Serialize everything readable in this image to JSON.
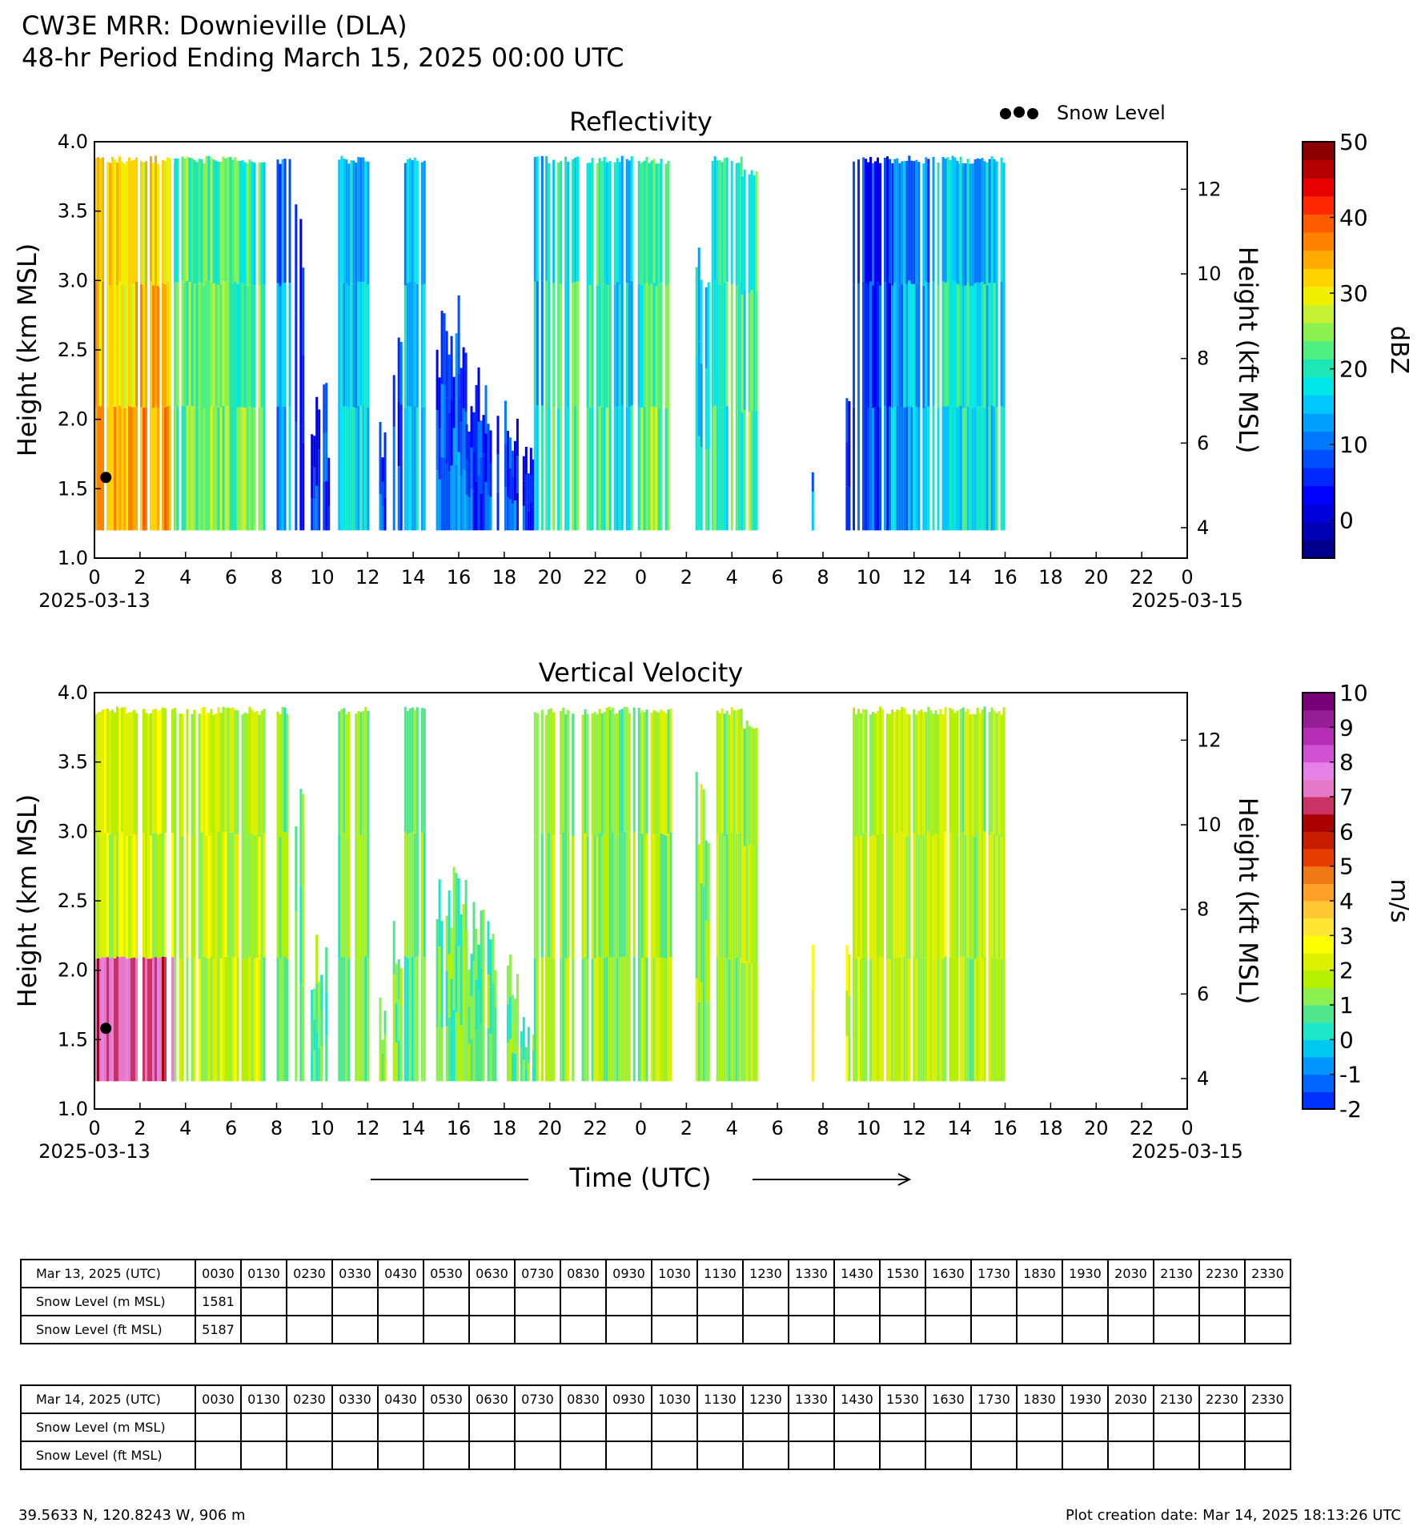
{
  "header": {
    "line1": "CW3E MRR: Downieville (DLA)",
    "line2": "48-hr Period Ending March 15, 2025 00:00 UTC"
  },
  "legend": {
    "label": "Snow Level"
  },
  "chart_data": [
    {
      "type": "heatmap",
      "title": "Reflectivity",
      "ylabel": "Height (km MSL)",
      "y2label": "Height (kft MSL)",
      "ylim": [
        1.0,
        4.0
      ],
      "yticks": [
        "1.0",
        "1.5",
        "2.0",
        "2.5",
        "3.0",
        "3.5",
        "4.0"
      ],
      "y2ticks": [
        "4",
        "6",
        "8",
        "10",
        "12"
      ],
      "xticks": [
        "0",
        "2",
        "4",
        "6",
        "8",
        "10",
        "12",
        "14",
        "16",
        "18",
        "20",
        "22",
        "0",
        "2",
        "4",
        "6",
        "8",
        "10",
        "12",
        "14",
        "16",
        "18",
        "20",
        "22",
        "0"
      ],
      "date_start": "2025-03-13",
      "date_end": "2025-03-15",
      "colorbar_label": "dBZ",
      "colorbar_ticks": [
        "50",
        "40",
        "30",
        "20",
        "10",
        "0"
      ],
      "colorbar_range": [
        -5,
        50
      ],
      "colors": [
        "#00008b",
        "#0000b4",
        "#0000dc",
        "#0000ff",
        "#0028ff",
        "#0050ff",
        "#0078ff",
        "#00a0ff",
        "#00c8ff",
        "#00e6e6",
        "#1ee6b4",
        "#50ef82",
        "#8cf050",
        "#c8f032",
        "#f0f000",
        "#ffd200",
        "#ffaa00",
        "#ff8200",
        "#ff5a00",
        "#ff2800",
        "#e60000",
        "#b40000",
        "#8b0000"
      ],
      "snow_level": [
        {
          "time_h": 0.5,
          "height_km": 1.581
        }
      ],
      "data_extent_km": [
        1.2,
        3.9
      ],
      "echo_periods_h": [
        [
          0,
          7.5
        ],
        [
          8,
          8.6
        ],
        [
          9,
          11.5
        ],
        [
          11.8,
          12.3
        ],
        [
          12.5,
          13.2
        ],
        [
          13.5,
          14.6
        ],
        [
          15.5,
          16.5
        ],
        [
          17,
          18
        ],
        [
          18.8,
          20.2
        ],
        [
          19.5,
          22.5
        ],
        [
          22.6,
          25.3
        ],
        [
          26.5,
          29.2
        ],
        [
          30.5,
          30.6
        ],
        [
          31.5,
          31.6
        ],
        [
          32.8,
          34
        ],
        [
          34,
          37.6
        ],
        [
          37.6,
          40
        ]
      ],
      "notes": "Highest reflectivity (25-35 dBZ) 0-4 h on 2025-03-13; weak echoes (0-10 dBZ) 33-36 h."
    },
    {
      "type": "heatmap",
      "title": "Vertical Velocity",
      "ylabel": "Height (km MSL)",
      "y2label": "Height (kft MSL)",
      "xlabel": "Time (UTC)",
      "ylim": [
        1.0,
        4.0
      ],
      "yticks": [
        "1.0",
        "1.5",
        "2.0",
        "2.5",
        "3.0",
        "3.5",
        "4.0"
      ],
      "y2ticks": [
        "4",
        "6",
        "8",
        "10",
        "12"
      ],
      "xticks": [
        "0",
        "2",
        "4",
        "6",
        "8",
        "10",
        "12",
        "14",
        "16",
        "18",
        "20",
        "22",
        "0",
        "2",
        "4",
        "6",
        "8",
        "10",
        "12",
        "14",
        "16",
        "18",
        "20",
        "22",
        "0"
      ],
      "date_start": "2025-03-13",
      "date_end": "2025-03-15",
      "colorbar_label": "m/s",
      "colorbar_ticks": [
        "10",
        "9",
        "8",
        "7",
        "6",
        "5",
        "4",
        "3",
        "2",
        "1",
        "0",
        "-1",
        "-2"
      ],
      "colorbar_range": [
        -2,
        10
      ],
      "colors": [
        "#0032ff",
        "#0064ff",
        "#0096ff",
        "#00c8f0",
        "#1ee6c8",
        "#50e68c",
        "#8cf050",
        "#b4f000",
        "#dcf000",
        "#ffff00",
        "#ffe632",
        "#ffc832",
        "#ffa028",
        "#f07814",
        "#e63c00",
        "#c81e00",
        "#aa0000",
        "#c83264",
        "#e678c8",
        "#e682e6",
        "#d250d2",
        "#b42db4",
        "#961e96",
        "#780078"
      ],
      "snow_level": [
        {
          "time_h": 0.5,
          "height_km": 1.581
        }
      ],
      "data_extent_km": [
        1.2,
        3.9
      ],
      "notes": "Mostly 0.5-2.5 m/s; up to 6-9 m/s near 0-1 h at low levels."
    }
  ],
  "tables": [
    {
      "header_label": "Mar 13, 2025 (UTC)",
      "times": [
        "0030",
        "0130",
        "0230",
        "0330",
        "0430",
        "0530",
        "0630",
        "0730",
        "0830",
        "0930",
        "1030",
        "1130",
        "1230",
        "1330",
        "1430",
        "1530",
        "1630",
        "1730",
        "1830",
        "1930",
        "2030",
        "2130",
        "2230",
        "2330"
      ],
      "rows": [
        {
          "label": "Snow Level (m MSL)",
          "values": [
            "1581",
            "",
            "",
            "",
            "",
            "",
            "",
            "",
            "",
            "",
            "",
            "",
            "",
            "",
            "",
            "",
            "",
            "",
            "",
            "",
            "",
            "",
            "",
            ""
          ]
        },
        {
          "label": "Snow Level (ft MSL)",
          "values": [
            "5187",
            "",
            "",
            "",
            "",
            "",
            "",
            "",
            "",
            "",
            "",
            "",
            "",
            "",
            "",
            "",
            "",
            "",
            "",
            "",
            "",
            "",
            "",
            ""
          ]
        }
      ]
    },
    {
      "header_label": "Mar 14, 2025 (UTC)",
      "times": [
        "0030",
        "0130",
        "0230",
        "0330",
        "0430",
        "0530",
        "0630",
        "0730",
        "0830",
        "0930",
        "1030",
        "1130",
        "1230",
        "1330",
        "1430",
        "1530",
        "1630",
        "1730",
        "1830",
        "1930",
        "2030",
        "2130",
        "2230",
        "2330"
      ],
      "rows": [
        {
          "label": "Snow Level (m MSL)",
          "values": [
            "",
            "",
            "",
            "",
            "",
            "",
            "",
            "",
            "",
            "",
            "",
            "",
            "",
            "",
            "",
            "",
            "",
            "",
            "",
            "",
            "",
            "",
            "",
            ""
          ]
        },
        {
          "label": "Snow Level (ft MSL)",
          "values": [
            "",
            "",
            "",
            "",
            "",
            "",
            "",
            "",
            "",
            "",
            "",
            "",
            "",
            "",
            "",
            "",
            "",
            "",
            "",
            "",
            "",
            "",
            "",
            ""
          ]
        }
      ]
    }
  ],
  "footer": {
    "location": "39.5633 N, 120.8243 W, 906 m",
    "creation": "Plot creation date: Mar 14, 2025 18:13:26 UTC"
  }
}
